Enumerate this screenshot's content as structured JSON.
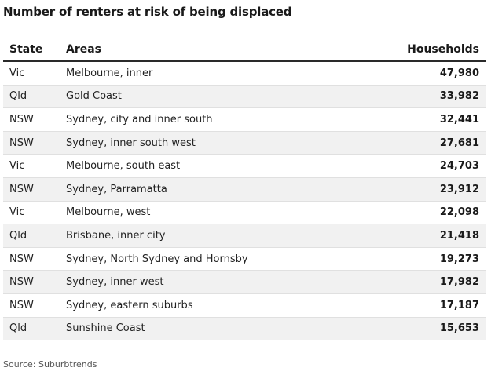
{
  "chart_data": {
    "type": "table",
    "title": "Number of renters at risk of being displaced",
    "columns": [
      "State",
      "Areas",
      "Households"
    ],
    "rows": [
      {
        "state": "Vic",
        "area": "Melbourne, inner",
        "households": "47,980"
      },
      {
        "state": "Qld",
        "area": "Gold Coast",
        "households": "33,982"
      },
      {
        "state": "NSW",
        "area": "Sydney, city and inner south",
        "households": "32,441"
      },
      {
        "state": "NSW",
        "area": "Sydney, inner south west",
        "households": "27,681"
      },
      {
        "state": "Vic",
        "area": "Melbourne, south east",
        "households": "24,703"
      },
      {
        "state": "NSW",
        "area": "Sydney, Parramatta",
        "households": "23,912"
      },
      {
        "state": "Vic",
        "area": "Melbourne, west",
        "households": "22,098"
      },
      {
        "state": "Qld",
        "area": "Brisbane, inner city",
        "households": "21,418"
      },
      {
        "state": "NSW",
        "area": "Sydney, North Sydney and Hornsby",
        "households": "19,273"
      },
      {
        "state": "NSW",
        "area": "Sydney, inner west",
        "households": "17,982"
      },
      {
        "state": "NSW",
        "area": "Sydney, eastern suburbs",
        "households": "17,187"
      },
      {
        "state": "Qld",
        "area": "Sunshine Coast",
        "households": "15,653"
      }
    ],
    "source": "Source: Suburbtrends"
  },
  "colors": {
    "header_rule": "#2a2a2a",
    "row_alt_bg": "#f1f1f1",
    "row_divider": "#e0e0e0"
  }
}
